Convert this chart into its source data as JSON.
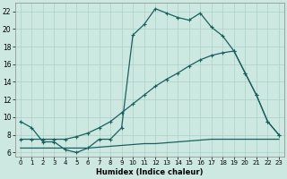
{
  "xlabel": "Humidex (Indice chaleur)",
  "background_color": "#cce8e0",
  "grid_color": "#aad0c8",
  "line_color": "#1a6060",
  "xlim": [
    -0.5,
    23.5
  ],
  "ylim": [
    5.5,
    23.0
  ],
  "xticks": [
    0,
    1,
    2,
    3,
    4,
    5,
    6,
    7,
    8,
    9,
    10,
    11,
    12,
    13,
    14,
    15,
    16,
    17,
    18,
    19,
    20,
    21,
    22,
    23
  ],
  "yticks": [
    6,
    8,
    10,
    12,
    14,
    16,
    18,
    20,
    22
  ],
  "curve_x": [
    0,
    1,
    2,
    3,
    4,
    5,
    6,
    7,
    8,
    9,
    10,
    11,
    12,
    13,
    14,
    15,
    16,
    17,
    18,
    19,
    20,
    21,
    22,
    23
  ],
  "curve_y": [
    9.5,
    8.8,
    7.2,
    7.2,
    6.3,
    6.0,
    6.5,
    7.5,
    7.5,
    8.8,
    19.3,
    20.5,
    22.3,
    21.8,
    21.3,
    21.0,
    21.8,
    20.2,
    19.2,
    17.5,
    15.0,
    12.5,
    9.5,
    8.0
  ],
  "diag_x": [
    0,
    1,
    2,
    3,
    4,
    5,
    6,
    7,
    8,
    9,
    10,
    11,
    12,
    13,
    14,
    15,
    16,
    17,
    18,
    19,
    20,
    21,
    22,
    23
  ],
  "diag_y": [
    7.5,
    7.5,
    7.5,
    7.5,
    7.5,
    7.8,
    8.2,
    8.8,
    9.5,
    10.5,
    11.5,
    12.5,
    13.5,
    14.3,
    15.0,
    15.8,
    16.5,
    17.0,
    17.3,
    17.5,
    15.0,
    12.5,
    9.5,
    8.0
  ],
  "flat_x": [
    0,
    1,
    2,
    3,
    4,
    5,
    6,
    7,
    8,
    9,
    10,
    11,
    12,
    13,
    14,
    15,
    16,
    17,
    18,
    19,
    20,
    21,
    22,
    23
  ],
  "flat_y": [
    6.5,
    6.5,
    6.5,
    6.5,
    6.5,
    6.5,
    6.5,
    6.6,
    6.7,
    6.8,
    6.9,
    7.0,
    7.0,
    7.1,
    7.2,
    7.3,
    7.4,
    7.5,
    7.5,
    7.5,
    7.5,
    7.5,
    7.5,
    7.5
  ]
}
